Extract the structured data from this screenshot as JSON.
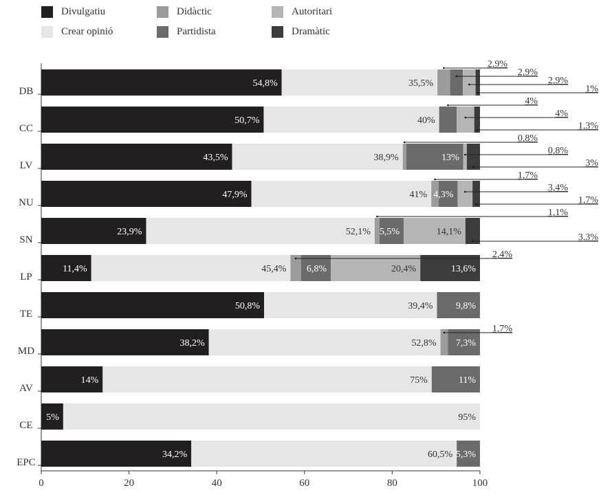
{
  "chart_data": {
    "type": "bar",
    "orientation": "horizontal",
    "stacked": true,
    "categories": [
      "DB",
      "CC",
      "LV",
      "NU",
      "SN",
      "LP",
      "TE",
      "MD",
      "AV",
      "CE",
      "EPC"
    ],
    "xlim": [
      0,
      100
    ],
    "xticks": [
      0,
      20,
      40,
      60,
      80,
      100
    ],
    "legend_position": "top-left",
    "series": [
      {
        "name": "Divulgatiu",
        "color": "#231f20",
        "values": [
          54.8,
          50.7,
          43.5,
          47.9,
          23.9,
          11.4,
          50.8,
          38.2,
          14,
          5,
          34.2
        ],
        "labels": [
          "54,8%",
          "50,7%",
          "43,5%",
          "47,9%",
          "23,9%",
          "11,4%",
          "50,8%",
          "38,2%",
          "14%",
          "5%",
          "34,2%"
        ]
      },
      {
        "name": "Crear opinió",
        "color": "#e6e6e6",
        "values": [
          35.5,
          40,
          38.9,
          41,
          52.1,
          45.4,
          39.4,
          52.8,
          75,
          95,
          60.5
        ],
        "labels": [
          "35,5%",
          "40%",
          "38,9%",
          "41%",
          "52,1%",
          "45,4%",
          "39,4%",
          "52,8%",
          "75%",
          "95%",
          "60,5%"
        ]
      },
      {
        "name": "Didàctic",
        "color": "#9c9c9c",
        "values": [
          2.9,
          0,
          0.8,
          1.7,
          1.1,
          2.4,
          0,
          1.7,
          0,
          0,
          0
        ],
        "labels": [
          "2,9%",
          "",
          "0,8%",
          "1,7%",
          "1,1%",
          "2,4%",
          "",
          "1,7%",
          "",
          "",
          ""
        ]
      },
      {
        "name": "Partidista",
        "color": "#6b6b6b",
        "values": [
          2.9,
          4,
          13,
          4.3,
          5.5,
          6.8,
          9.8,
          7.3,
          11,
          0,
          5.3
        ],
        "labels": [
          "2,9%",
          "4%",
          "13%",
          "4,3%",
          "5,5%",
          "6,8%",
          "9,8%",
          "7,3%",
          "11%",
          "",
          "5,3%"
        ]
      },
      {
        "name": "Autoritari",
        "color": "#b5b5b5",
        "values": [
          2.9,
          4,
          0.8,
          3.4,
          14.1,
          20.4,
          0,
          0,
          0,
          0,
          0
        ],
        "labels": [
          "2,9%",
          "4%",
          "0,8%",
          "3,4%",
          "14,1%",
          "20,4%",
          "",
          "",
          "",
          "",
          ""
        ]
      },
      {
        "name": "Dramàtic",
        "color": "#3c3c3c",
        "values": [
          1,
          1.3,
          3,
          1.7,
          3.3,
          13.6,
          0,
          0,
          0,
          0,
          0
        ],
        "labels": [
          "1%",
          "1,3%",
          "3%",
          "1,7%",
          "3,3%",
          "13,6%",
          "",
          "",
          "",
          "",
          ""
        ]
      }
    ]
  }
}
